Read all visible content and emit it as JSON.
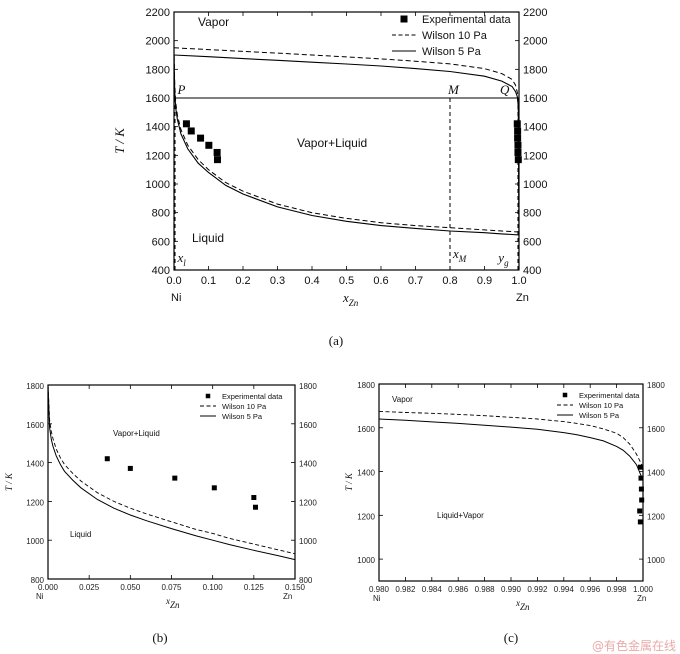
{
  "chart_data": [
    {
      "type": "line",
      "panel_label": "(a)",
      "xlabel": "x",
      "xlabel_sub": "Zn",
      "ylabel": "T / K",
      "xlim": [
        0.0,
        1.0
      ],
      "ylim": [
        400,
        2200
      ],
      "x_ticks": [
        "0.0",
        "0.1",
        "0.2",
        "0.3",
        "0.4",
        "0.5",
        "0.6",
        "0.7",
        "0.8",
        "0.9",
        "1.0"
      ],
      "y_ticks": [
        "400",
        "600",
        "800",
        "1000",
        "1200",
        "1400",
        "1600",
        "1800",
        "2000",
        "2200"
      ],
      "end_labels": [
        "Ni",
        "Zn"
      ],
      "regions": [
        "Vapor",
        "Vapor+Liquid",
        "Liquid"
      ],
      "annotations": {
        "P": "P",
        "M": "M",
        "Q": "Q",
        "x1": "x",
        "x1_sub": "l",
        "xM": "x",
        "xM_sub": "M",
        "yg": "y",
        "yg_sub": "g"
      },
      "tie_line_T": 1600,
      "x_M": 0.8,
      "legend": [
        "Experimental data",
        "Wilson 10 Pa",
        "Wilson 5 Pa"
      ],
      "legend_position": "top-right",
      "series": [
        {
          "name": "Experimental data",
          "style": "square",
          "x": [
            0.036,
            0.05,
            0.077,
            0.101,
            0.125,
            0.126,
            0.995,
            0.996,
            0.996,
            0.997,
            0.997,
            0.998
          ],
          "y": [
            1420,
            1370,
            1320,
            1270,
            1220,
            1170,
            1420,
            1370,
            1320,
            1270,
            1220,
            1170
          ]
        },
        {
          "name": "Wilson 10 Pa",
          "style": "dashed",
          "liquidus_x": [
            0.0,
            0.002,
            0.005,
            0.01,
            0.02,
            0.04,
            0.07,
            0.1,
            0.15,
            0.2,
            0.3,
            0.4,
            0.5,
            0.6,
            0.7,
            0.8,
            0.9,
            0.95,
            1.0
          ],
          "liquidus_y": [
            1950,
            1700,
            1570,
            1480,
            1380,
            1270,
            1170,
            1100,
            1010,
            950,
            860,
            800,
            760,
            730,
            710,
            695,
            680,
            672,
            665
          ],
          "vapor_x": [
            0.0,
            0.1,
            0.2,
            0.3,
            0.4,
            0.5,
            0.6,
            0.7,
            0.8,
            0.9,
            0.95,
            0.98,
            0.99,
            0.995,
            0.998,
            1.0
          ],
          "vapor_y": [
            1950,
            1938,
            1925,
            1913,
            1900,
            1887,
            1873,
            1857,
            1838,
            1805,
            1770,
            1730,
            1690,
            1640,
            1550,
            665
          ]
        },
        {
          "name": "Wilson 5 Pa",
          "style": "solid",
          "liquidus_x": [
            0.0,
            0.002,
            0.005,
            0.01,
            0.02,
            0.04,
            0.07,
            0.1,
            0.15,
            0.2,
            0.3,
            0.4,
            0.5,
            0.6,
            0.7,
            0.8,
            0.9,
            0.95,
            1.0
          ],
          "liquidus_y": [
            1900,
            1650,
            1530,
            1450,
            1350,
            1245,
            1145,
            1080,
            990,
            930,
            840,
            780,
            740,
            710,
            690,
            672,
            660,
            652,
            645
          ],
          "vapor_x": [
            0.0,
            0.1,
            0.2,
            0.3,
            0.4,
            0.5,
            0.6,
            0.7,
            0.8,
            0.9,
            0.95,
            0.98,
            0.99,
            0.995,
            0.998,
            1.0
          ],
          "vapor_y": [
            1900,
            1888,
            1875,
            1863,
            1850,
            1837,
            1823,
            1805,
            1785,
            1752,
            1718,
            1680,
            1645,
            1610,
            1540,
            645
          ]
        }
      ]
    },
    {
      "type": "line",
      "panel_label": "(b)",
      "xlabel": "x",
      "xlabel_sub": "Zn",
      "ylabel": "T / K",
      "xlim": [
        0.0,
        0.15
      ],
      "ylim": [
        800,
        1800
      ],
      "x_ticks": [
        "0.000",
        "0.025",
        "0.050",
        "0.075",
        "0.100",
        "0.125",
        "0.150"
      ],
      "y_ticks": [
        "800",
        "1000",
        "1200",
        "1400",
        "1600",
        "1800"
      ],
      "end_labels": [
        "Ni",
        "Zn"
      ],
      "regions": [
        "Vapor+Liquid",
        "Liquid"
      ],
      "legend": [
        "Experimental data",
        "Wilson 10 Pa",
        "Wilson 5 Pa"
      ],
      "legend_position": "top-right",
      "series": [
        {
          "name": "Experimental data",
          "style": "square",
          "x": [
            0.036,
            0.05,
            0.077,
            0.101,
            0.125,
            0.126
          ],
          "y": [
            1420,
            1370,
            1320,
            1270,
            1220,
            1170
          ]
        },
        {
          "name": "Wilson 10 Pa",
          "style": "dashed",
          "x": [
            0.0,
            0.001,
            0.002,
            0.003,
            0.005,
            0.0075,
            0.01,
            0.015,
            0.02,
            0.03,
            0.04,
            0.05,
            0.06,
            0.075,
            0.09,
            0.1,
            0.11,
            0.125,
            0.14,
            0.15
          ],
          "y": [
            1800,
            1620,
            1560,
            1525,
            1470,
            1425,
            1390,
            1345,
            1305,
            1245,
            1200,
            1165,
            1135,
            1095,
            1055,
            1035,
            1010,
            980,
            950,
            930
          ]
        },
        {
          "name": "Wilson 5 Pa",
          "style": "solid",
          "x": [
            0.0,
            0.001,
            0.002,
            0.003,
            0.005,
            0.0075,
            0.01,
            0.015,
            0.02,
            0.03,
            0.04,
            0.05,
            0.06,
            0.075,
            0.09,
            0.1,
            0.11,
            0.125,
            0.14,
            0.15
          ],
          "y": [
            1800,
            1580,
            1520,
            1485,
            1435,
            1390,
            1355,
            1310,
            1270,
            1210,
            1165,
            1130,
            1100,
            1060,
            1022,
            1000,
            978,
            948,
            920,
            900
          ]
        }
      ]
    },
    {
      "type": "line",
      "panel_label": "(c)",
      "xlabel": "x",
      "xlabel_sub": "Zn",
      "ylabel": "T / K",
      "xlim": [
        0.98,
        1.0
      ],
      "ylim": [
        900,
        1800
      ],
      "x_ticks": [
        "0.980",
        "0.982",
        "0.984",
        "0.986",
        "0.988",
        "0.990",
        "0.992",
        "0.994",
        "0.996",
        "0.998",
        "1.000"
      ],
      "y_ticks": [
        "1000",
        "1200",
        "1400",
        "1600",
        "1800"
      ],
      "end_labels": [
        "Ni",
        "Zn"
      ],
      "regions": [
        "Vapor",
        "Liquid+Vapor"
      ],
      "legend": [
        "Experimental data",
        "Wilson 10 Pa",
        "Wilson 5 Pa"
      ],
      "legend_position": "top-right",
      "series": [
        {
          "name": "Experimental data",
          "style": "square",
          "x": [
            0.9998,
            0.99985,
            0.99988,
            0.9999,
            0.99975,
            0.9998
          ],
          "y": [
            1420,
            1370,
            1320,
            1270,
            1220,
            1170
          ]
        },
        {
          "name": "Wilson 10 Pa",
          "style": "dashed",
          "x": [
            0.98,
            0.982,
            0.984,
            0.986,
            0.988,
            0.99,
            0.992,
            0.994,
            0.995,
            0.996,
            0.997,
            0.998,
            0.9985,
            0.999,
            0.9995,
            1.0
          ],
          "y": [
            1675,
            1670,
            1666,
            1661,
            1655,
            1648,
            1640,
            1628,
            1620,
            1610,
            1595,
            1575,
            1555,
            1525,
            1480,
            1420
          ]
        },
        {
          "name": "Wilson 5 Pa",
          "style": "solid",
          "x": [
            0.98,
            0.982,
            0.984,
            0.986,
            0.988,
            0.99,
            0.992,
            0.994,
            0.995,
            0.996,
            0.997,
            0.998,
            0.9985,
            0.999,
            0.9995,
            1.0
          ],
          "y": [
            1640,
            1634,
            1627,
            1620,
            1612,
            1603,
            1593,
            1578,
            1568,
            1555,
            1540,
            1515,
            1497,
            1470,
            1432,
            1360
          ]
        }
      ]
    }
  ],
  "watermark": "@有色金属在线"
}
